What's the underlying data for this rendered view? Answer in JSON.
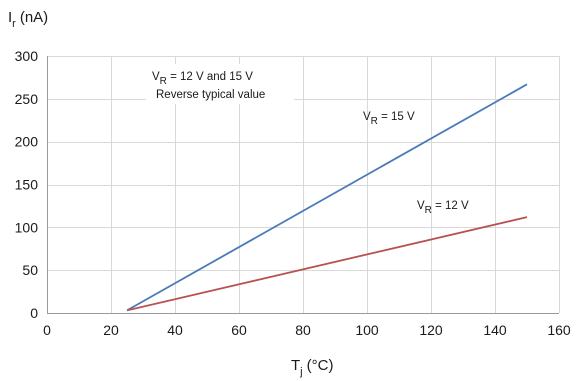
{
  "chart_data": {
    "type": "line",
    "x_axis": {
      "symbol": "T",
      "subscript": "j",
      "unit": "(°C)",
      "min": 0,
      "max": 160,
      "ticks": [
        0,
        20,
        40,
        60,
        80,
        100,
        120,
        140,
        160
      ]
    },
    "y_axis": {
      "symbol": "I",
      "subscript": "r",
      "unit": "(nA)",
      "min": 0,
      "max": 300,
      "ticks": [
        0,
        50,
        100,
        150,
        200,
        250,
        300
      ]
    },
    "grid": true,
    "legend": "none",
    "series": [
      {
        "key": "vr15",
        "color": "#4a7ab8",
        "x": [
          25,
          150
        ],
        "y": [
          3,
          267
        ]
      },
      {
        "key": "vr12",
        "color": "#b8524f",
        "x": [
          25,
          150
        ],
        "y": [
          3,
          112
        ]
      }
    ],
    "annotations": {
      "vr15": {
        "symbol": "V",
        "subscript": "R",
        "text": " = 15 V"
      },
      "vr12": {
        "symbol": "V",
        "subscript": "R",
        "text": " = 12 V"
      },
      "box_line1": {
        "symbol": "V",
        "subscript": "R",
        "text": " = 12 V and 15 V"
      },
      "box_line2": "Reverse typical value"
    }
  }
}
